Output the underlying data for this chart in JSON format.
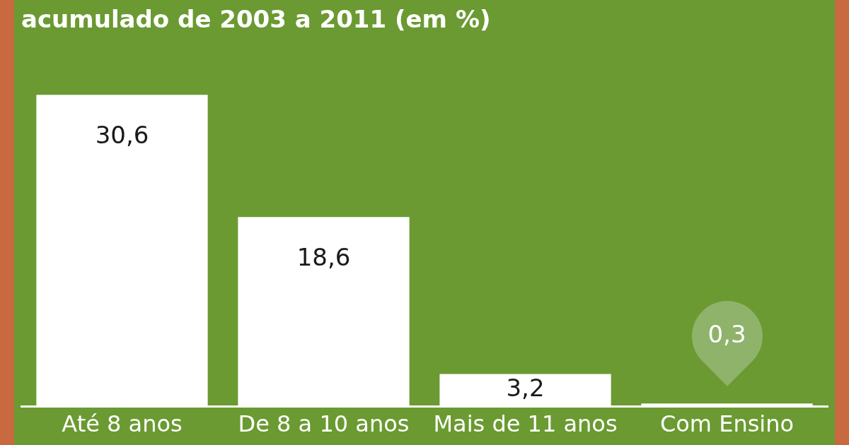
{
  "chart_data": {
    "type": "bar",
    "title": "acumulado de 2003 a 2011 (em %)",
    "categories": [
      "Até 8 anos",
      "De 8 a 10 anos",
      "Mais de 11 anos",
      "Com Ensino"
    ],
    "values": [
      30.6,
      18.6,
      3.2,
      0.3
    ],
    "color": "#ffffff",
    "value_labels": [
      "30,6",
      "18,6",
      "3,2",
      "0,3"
    ],
    "grid": false,
    "legend": false,
    "tick_labels": "x"
  }
}
